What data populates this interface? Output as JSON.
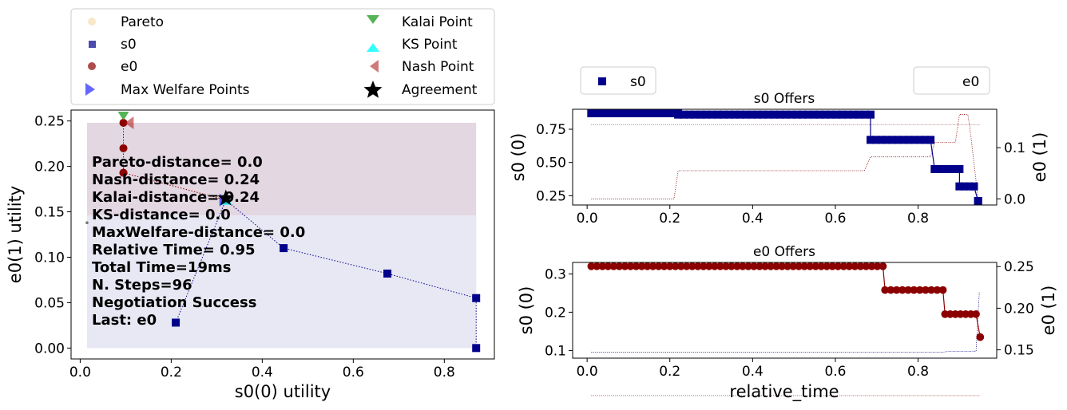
{
  "colors": {
    "s0": "#00008b",
    "e0": "#8b0000",
    "pareto": "#f5deb3",
    "kalai": "#2ca02c",
    "ks": "#00ffff",
    "nash": "#b22222",
    "max_welfare": "#0000ff",
    "agreement": "#000000",
    "region_upper": "#e3d7e2",
    "region_lower": "#e8e8f4"
  },
  "legend_main": {
    "pareto": "Pareto",
    "s0": "s0",
    "e0": "e0",
    "max_welfare": "Max Welfare Points",
    "kalai": "Kalai Point",
    "ks": "KS Point",
    "nash": "Nash Point",
    "agreement": "Agreement"
  },
  "info_lines": [
    "Pareto-distance=  0.0",
    "Nash-distance= 0.24",
    "Kalai-distance= 0.24",
    "KS-distance=  0.0",
    "MaxWelfare-distance=  0.0",
    "Relative Time= 0.95",
    "Total Time=19ms",
    "N. Steps=96",
    "Negotiation Success",
    "Last: e0"
  ],
  "legend_s0_panel": "s0",
  "legend_e0_panel": "e0",
  "chart_data": [
    {
      "type": "scatter",
      "xlabel": "s0(0) utility",
      "ylabel": "e0(1) utility",
      "xlim": [
        -0.02,
        0.91
      ],
      "ylim": [
        -0.012,
        0.262
      ],
      "xticks": [
        "0.0",
        "0.2",
        "0.4",
        "0.6",
        "0.8"
      ],
      "yticks": [
        "0.00",
        "0.05",
        "0.10",
        "0.15",
        "0.20",
        "0.25"
      ],
      "series": [
        {
          "name": "s0",
          "x": [
            0.21,
            0.32,
            0.447,
            0.675,
            0.87,
            0.87
          ],
          "y": [
            0.028,
            0.163,
            0.11,
            0.082,
            0.055,
            0.0
          ]
        },
        {
          "name": "e0",
          "x": [
            0.095,
            0.095,
            0.095,
            0.095,
            0.32
          ],
          "y": [
            0.248,
            0.22,
            0.193,
            0.193,
            0.163
          ]
        },
        {
          "name": "Pareto",
          "x": [
            0.015,
            0.095,
            0.32,
            0.87
          ],
          "y": [
            0.138,
            0.248,
            0.163,
            0.0
          ]
        },
        {
          "name": "Kalai Point",
          "x": [
            0.095
          ],
          "y": [
            0.255
          ]
        },
        {
          "name": "KS Point",
          "x": [
            0.32
          ],
          "y": [
            0.163
          ]
        },
        {
          "name": "Nash Point",
          "x": [
            0.1
          ],
          "y": [
            0.248
          ]
        },
        {
          "name": "Max Welfare Points",
          "x": [
            0.32
          ],
          "y": [
            0.163
          ]
        },
        {
          "name": "Agreement",
          "x": [
            0.32
          ],
          "y": [
            0.165
          ]
        }
      ],
      "regions": [
        {
          "x": [
            0.015,
            0.87
          ],
          "y": [
            0.146,
            0.248
          ]
        },
        {
          "x": [
            0.015,
            0.87
          ],
          "y": [
            0.0,
            0.146
          ]
        }
      ]
    },
    {
      "type": "line",
      "title": "s0 Offers",
      "ylabel": "s0 (0)",
      "ylabel_right": "e0 (1)",
      "xlim": [
        -0.035,
        0.99
      ],
      "ylim": [
        0.18,
        0.9
      ],
      "ylim_right": [
        -0.012,
        0.175
      ],
      "xticks": [
        "0.0",
        "0.2",
        "0.4",
        "0.6",
        "0.8"
      ],
      "yticks": [
        "0.25",
        "0.50",
        "0.75"
      ],
      "yticks_right": [
        "0.0",
        "0.1"
      ],
      "series": [
        {
          "name": "s0",
          "segments": [
            {
              "x0": 0.01,
              "x1": 0.22,
              "y": 0.87
            },
            {
              "x0": 0.22,
              "x1": 0.685,
              "y": 0.86
            },
            {
              "x0": 0.685,
              "x1": 0.83,
              "y": 0.67
            },
            {
              "x0": 0.84,
              "x1": 0.9,
              "y": 0.45
            },
            {
              "x0": 0.9,
              "x1": 0.935,
              "y": 0.32
            },
            {
              "x0": 0.945,
              "x1": 0.945,
              "y": 0.21
            }
          ]
        },
        {
          "name": "e0 utility of s0 offers",
          "x": [
            0.01,
            0.21,
            0.22,
            0.67,
            0.685,
            0.83,
            0.84,
            0.89,
            0.9,
            0.92,
            0.925,
            0.945
          ],
          "y": [
            0.0,
            0.0,
            0.055,
            0.055,
            0.082,
            0.082,
            0.11,
            0.11,
            0.165,
            0.165,
            0.14,
            0.0
          ]
        },
        {
          "name": "e0 reference",
          "x": [
            0.01,
            0.95
          ],
          "y": [
            0.145,
            0.145
          ]
        }
      ]
    },
    {
      "type": "line",
      "title": "e0 Offers",
      "xlabel": "relative_time",
      "ylabel": "s0 (0)",
      "ylabel_right": "e0 (1)",
      "xlim": [
        -0.035,
        0.99
      ],
      "ylim": [
        0.08,
        0.33
      ],
      "ylim_right": [
        0.14,
        0.255
      ],
      "xticks": [
        "0.0",
        "0.2",
        "0.4",
        "0.6",
        "0.8"
      ],
      "yticks": [
        "0.1",
        "0.2",
        "0.3"
      ],
      "yticks_right": [
        "0.15",
        "0.20",
        "0.25"
      ],
      "series": [
        {
          "name": "e0",
          "segments": [
            {
              "x0": 0.01,
              "x1": 0.715,
              "y": 0.32
            },
            {
              "x0": 0.72,
              "x1": 0.86,
              "y": 0.258
            },
            {
              "x0": 0.865,
              "x1": 0.94,
              "y": 0.195
            },
            {
              "x0": 0.95,
              "x1": 0.95,
              "y": 0.135
            }
          ]
        },
        {
          "name": "e0 utility",
          "x": [
            0.01,
            0.86,
            0.87,
            0.94,
            0.948
          ],
          "y": [
            0.147,
            0.147,
            0.148,
            0.148,
            0.22
          ]
        },
        {
          "name": "s0 reference",
          "x": [
            0.01,
            0.95
          ],
          "y": [
            0.095,
            0.095
          ]
        }
      ]
    }
  ]
}
